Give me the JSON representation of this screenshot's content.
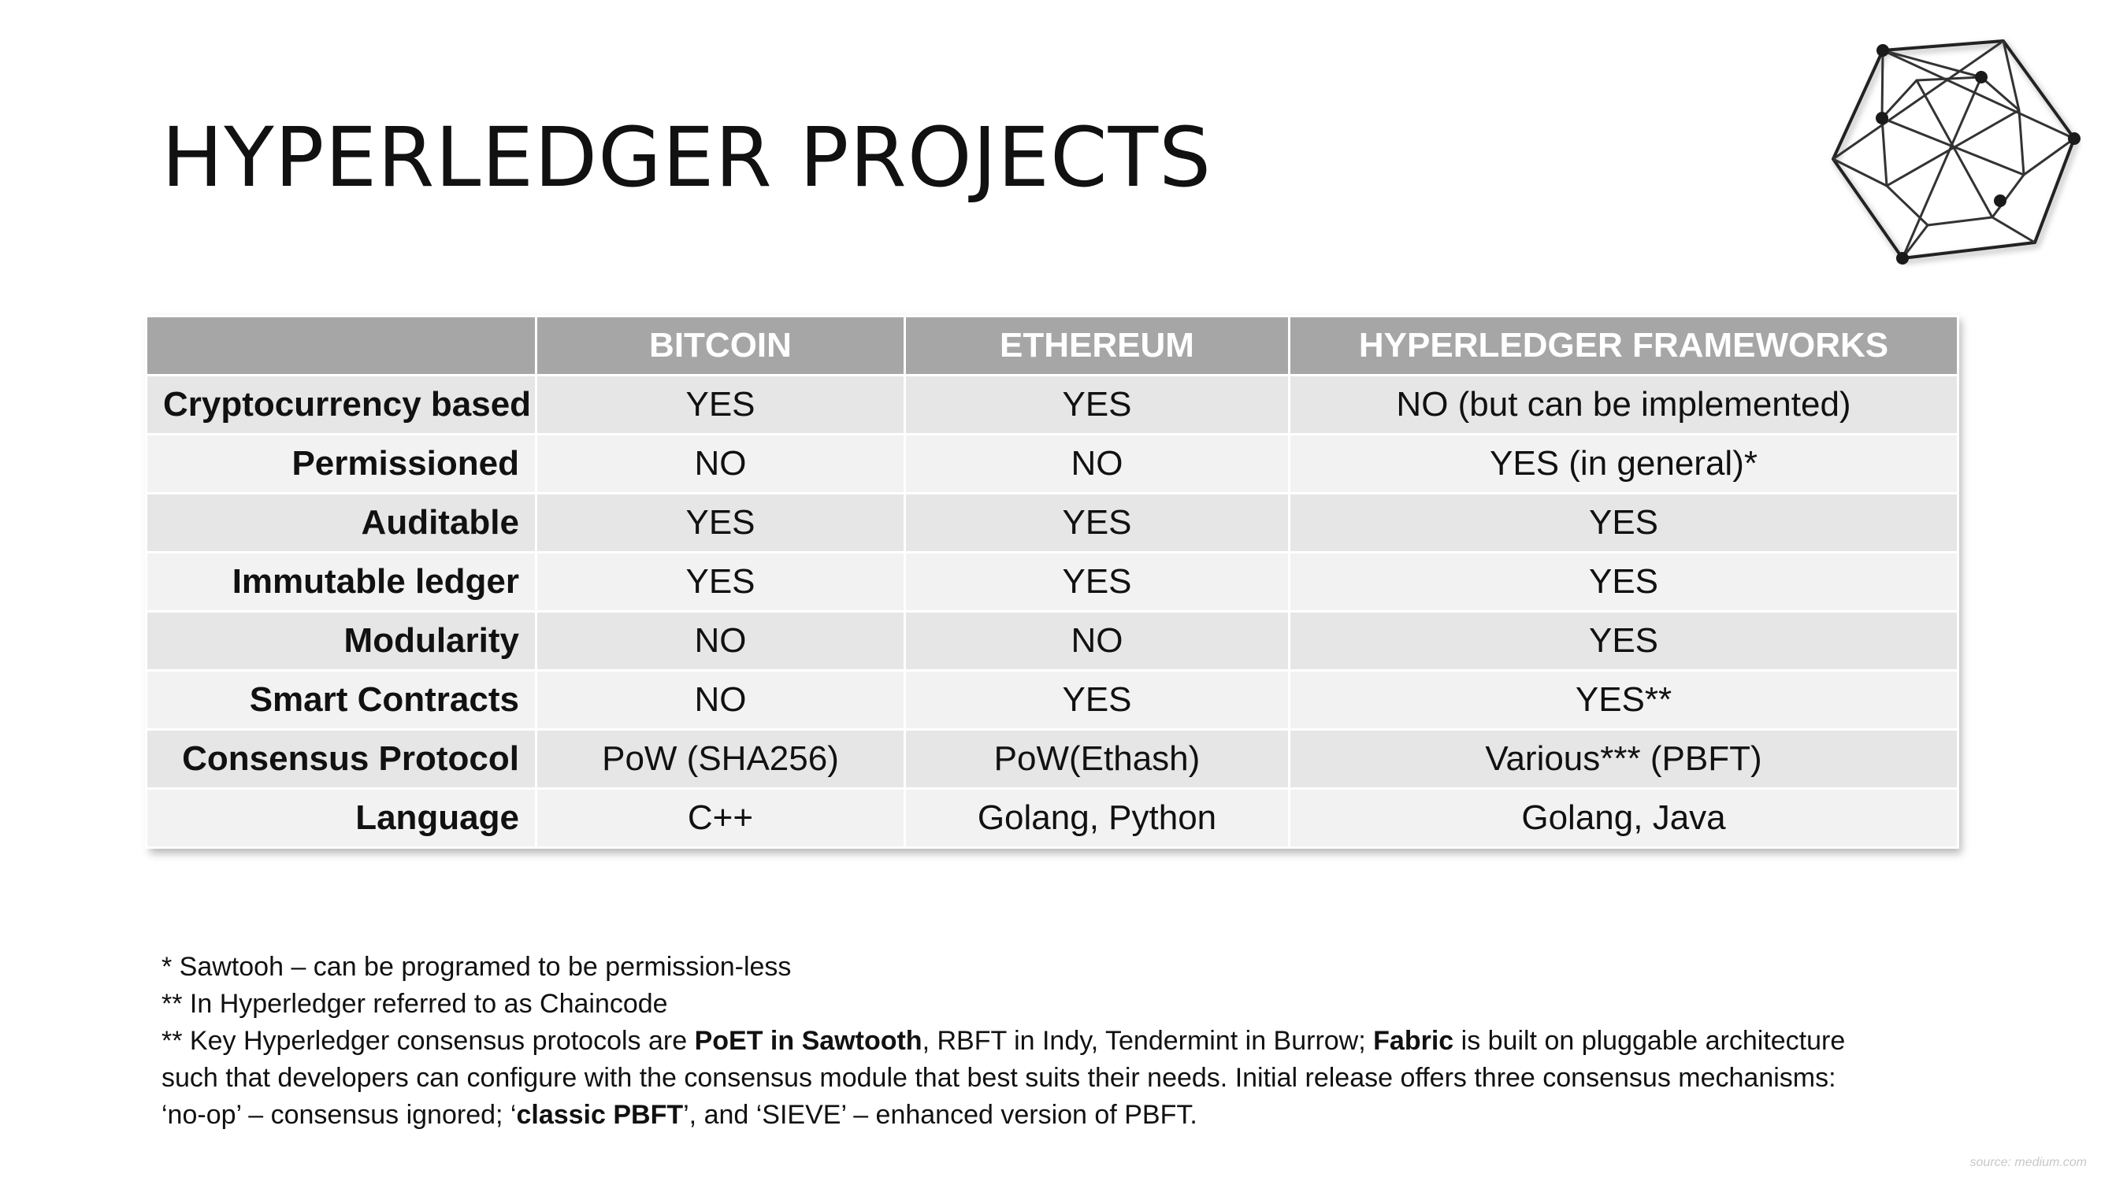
{
  "slide": {
    "title": "HYPERLEDGER PROJECTS",
    "logo_icon": "hyperledger-hexagon-logo-icon",
    "source": "source: medium.com"
  },
  "table": {
    "columns": [
      "",
      "BITCOIN",
      "ETHEREUM",
      "HYPERLEDGER FRAMEWORKS"
    ],
    "rows": [
      {
        "label": "Cryptocurrency based",
        "bitcoin": "YES",
        "ethereum": "YES",
        "hyperledger": "NO (but can be implemented)"
      },
      {
        "label": "Permissioned",
        "bitcoin": "NO",
        "ethereum": "NO",
        "hyperledger": "YES (in general)*"
      },
      {
        "label": "Auditable",
        "bitcoin": "YES",
        "ethereum": "YES",
        "hyperledger": "YES"
      },
      {
        "label": "Immutable ledger",
        "bitcoin": "YES",
        "ethereum": "YES",
        "hyperledger": "YES"
      },
      {
        "label": "Modularity",
        "bitcoin": "NO",
        "ethereum": "NO",
        "hyperledger": "YES"
      },
      {
        "label": "Smart Contracts",
        "bitcoin": "NO",
        "ethereum": "YES",
        "hyperledger": "YES**"
      },
      {
        "label": "Consensus Protocol",
        "bitcoin": "PoW (SHA256)",
        "ethereum": "PoW(Ethash)",
        "hyperledger": "Various*** (PBFT)"
      },
      {
        "label": "Language",
        "bitcoin": "C++",
        "ethereum": "Golang, Python",
        "hyperledger": "Golang, Java"
      }
    ]
  },
  "notes": {
    "note1": "* Sawtooh – can be programed to be permission-less",
    "note2": "** In Hyperledger referred to as Chaincode",
    "note3": {
      "p1": "** Key Hyperledger consensus protocols are ",
      "b1": "PoET in Sawtooth",
      "p2": ", RBFT in Indy, Tendermint in Burrow; ",
      "b2": "Fabric",
      "p3": " is built on pluggable architecture"
    },
    "note4": "such that developers can configure with the consensus module that best suits their needs.  Initial release offers three consensus mechanisms:",
    "note5": {
      "p1": "‘no-op’ – consensus ignored; ‘",
      "b1": "classic PBFT",
      "p2": "’, and ‘SIEVE’ – enhanced version of PBFT."
    }
  }
}
